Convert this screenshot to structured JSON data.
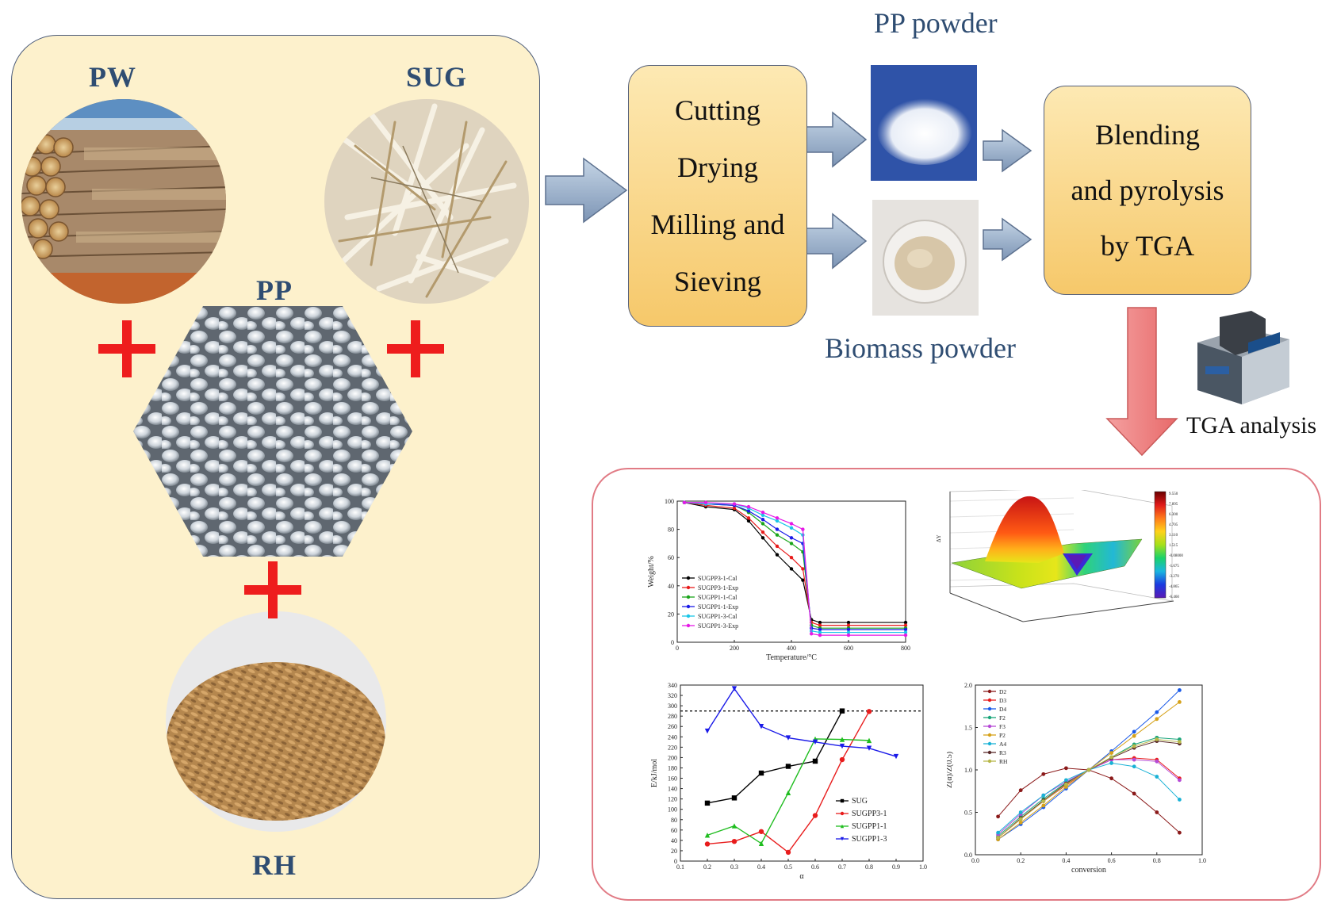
{
  "feedstocks": {
    "pw": "PW",
    "sug": "SUG",
    "pp": "PP",
    "rh": "RH"
  },
  "steps": {
    "preparation": [
      "Cutting",
      "Drying",
      "Milling and",
      "Sieving"
    ],
    "pp_powder": "PP powder",
    "biomass_powder": "Biomass powder",
    "process": [
      "Blending",
      "and pyrolysis",
      "by TGA"
    ],
    "tga_analysis": "TGA analysis"
  },
  "colors": {
    "panel_fill": "#fdf1cc",
    "step_fill": "#f8d27e",
    "arrow_blue": "#90a8c6",
    "arrow_red": "#f08a8a",
    "plus": "#ee1d1d",
    "label_blue": "#2f4d72",
    "results_border": "#e17b85"
  },
  "chart_data": [
    {
      "type": "line",
      "xlabel": "Temperature/°C",
      "ylabel": "Weight/%",
      "xlim": [
        0,
        800
      ],
      "ylim": [
        0,
        100
      ],
      "x_ticks": [
        "0",
        "200",
        "400",
        "600",
        "800"
      ],
      "y_ticks": [
        "0",
        "20",
        "40",
        "60",
        "80",
        "100"
      ],
      "legend_position": "bottom-left",
      "x": [
        25,
        100,
        200,
        250,
        300,
        350,
        400,
        440,
        470,
        500,
        600,
        800
      ],
      "series": [
        {
          "name": "SUGPP3-1-Cal",
          "color": "#000000",
          "values": [
            99,
            96,
            94,
            86,
            74,
            62,
            52,
            44,
            16,
            14,
            14,
            14
          ]
        },
        {
          "name": "SUGPP3-1-Exp",
          "color": "#e81c1c",
          "values": [
            99,
            97,
            95,
            88,
            78,
            68,
            60,
            52,
            14,
            12,
            12,
            12
          ]
        },
        {
          "name": "SUGPP1-1-Cal",
          "color": "#1aa51a",
          "values": [
            99,
            98,
            97,
            92,
            84,
            76,
            70,
            64,
            12,
            10,
            10,
            10
          ]
        },
        {
          "name": "SUGPP1-1-Exp",
          "color": "#1a1ae8",
          "values": [
            99,
            98,
            97,
            93,
            87,
            80,
            74,
            70,
            10,
            9,
            9,
            9
          ]
        },
        {
          "name": "SUGPP1-3-Cal",
          "color": "#19c6e8",
          "values": [
            99,
            98,
            98,
            95,
            90,
            86,
            81,
            76,
            8,
            7,
            7,
            7
          ]
        },
        {
          "name": "SUGPP1-3-Exp",
          "color": "#e61ae6",
          "values": [
            99,
            99,
            98,
            96,
            92,
            88,
            84,
            80,
            6,
            5,
            5,
            5
          ]
        }
      ]
    },
    {
      "type": "heatmap",
      "zlabel": "ΔY",
      "colorbar_ticks": [
        "9.550",
        "7.895",
        "6.300",
        "4.705",
        "3.110",
        "1.515",
        "-0.08000",
        "-1.675",
        "-3.270",
        "-4.865",
        "-6.460"
      ]
    },
    {
      "type": "line",
      "xlabel": "α",
      "ylabel": "E/kJ/mol",
      "xlim": [
        0.1,
        1.0
      ],
      "ylim": [
        0,
        340
      ],
      "x_ticks": [
        "0.1",
        "0.2",
        "0.3",
        "0.4",
        "0.5",
        "0.6",
        "0.7",
        "0.8",
        "0.9",
        "1.0"
      ],
      "y_ticks": [
        "0",
        "20",
        "40",
        "60",
        "80",
        "100",
        "120",
        "140",
        "160",
        "180",
        "200",
        "220",
        "240",
        "260",
        "280",
        "300",
        "320",
        "340"
      ],
      "reference_line": 290,
      "legend_position": "bottom-right",
      "series": [
        {
          "name": "SUG",
          "color": "#000000",
          "marker": "square",
          "x": [
            0.2,
            0.3,
            0.4,
            0.5,
            0.6,
            0.7
          ],
          "values": [
            112,
            122,
            170,
            183,
            193,
            290
          ]
        },
        {
          "name": "SUGPP3-1",
          "color": "#e81c1c",
          "marker": "circle",
          "x": [
            0.2,
            0.3,
            0.4,
            0.5,
            0.6,
            0.7,
            0.8
          ],
          "values": [
            33,
            38,
            57,
            17,
            88,
            196,
            289
          ]
        },
        {
          "name": "SUGPP1-1",
          "color": "#1fbd1f",
          "marker": "triangle",
          "x": [
            0.2,
            0.3,
            0.4,
            0.5,
            0.6,
            0.7,
            0.8
          ],
          "values": [
            50,
            68,
            34,
            132,
            236,
            235,
            233
          ]
        },
        {
          "name": "SUGPP1-3",
          "color": "#1a1ae8",
          "marker": "triangle-down",
          "x": [
            0.2,
            0.3,
            0.4,
            0.5,
            0.6,
            0.7,
            0.8,
            0.9
          ],
          "values": [
            251,
            333,
            260,
            238,
            230,
            222,
            218,
            202
          ]
        }
      ]
    },
    {
      "type": "line",
      "xlabel": "conversion",
      "ylabel": "Z(α)/Z(0.5)",
      "xlim": [
        0.0,
        1.0
      ],
      "ylim": [
        0.0,
        2.0
      ],
      "x_ticks": [
        "0.0",
        "0.2",
        "0.4",
        "0.6",
        "0.8",
        "1.0"
      ],
      "y_ticks": [
        "0.0",
        "0.5",
        "1.0",
        "1.5",
        "2.0"
      ],
      "legend_position": "top-left",
      "x": [
        0.1,
        0.2,
        0.3,
        0.4,
        0.5,
        0.6,
        0.7,
        0.8,
        0.9
      ],
      "series": [
        {
          "name": "D2",
          "color": "#8b1a1a",
          "values": [
            0.45,
            0.76,
            0.95,
            1.02,
            1.0,
            0.9,
            0.72,
            0.5,
            0.26
          ]
        },
        {
          "name": "D3",
          "color": "#e81c1c",
          "values": [
            0.2,
            0.42,
            0.63,
            0.82,
            1.0,
            1.12,
            1.14,
            1.12,
            0.9
          ]
        },
        {
          "name": "D4",
          "color": "#1a5ae8",
          "values": [
            0.18,
            0.36,
            0.56,
            0.78,
            1.0,
            1.22,
            1.45,
            1.68,
            1.94
          ]
        },
        {
          "name": "F2",
          "color": "#1aa57a",
          "values": [
            0.22,
            0.45,
            0.66,
            0.85,
            1.0,
            1.15,
            1.3,
            1.38,
            1.36
          ]
        },
        {
          "name": "F3",
          "color": "#b64ad6",
          "values": [
            0.24,
            0.48,
            0.7,
            0.86,
            1.0,
            1.12,
            1.12,
            1.1,
            0.88
          ]
        },
        {
          "name": "P2",
          "color": "#d6a21a",
          "values": [
            0.18,
            0.38,
            0.58,
            0.8,
            1.0,
            1.2,
            1.4,
            1.6,
            1.8
          ]
        },
        {
          "name": "A4",
          "color": "#19b2d6",
          "values": [
            0.26,
            0.5,
            0.7,
            0.88,
            1.0,
            1.08,
            1.04,
            0.92,
            0.65
          ]
        },
        {
          "name": "R3",
          "color": "#5a2a2a",
          "values": [
            0.2,
            0.43,
            0.64,
            0.84,
            1.0,
            1.14,
            1.26,
            1.34,
            1.31
          ]
        },
        {
          "name": "RH",
          "color": "#b8b84a",
          "values": [
            0.2,
            0.42,
            0.63,
            0.83,
            1.0,
            1.15,
            1.28,
            1.36,
            1.33
          ]
        }
      ]
    }
  ]
}
